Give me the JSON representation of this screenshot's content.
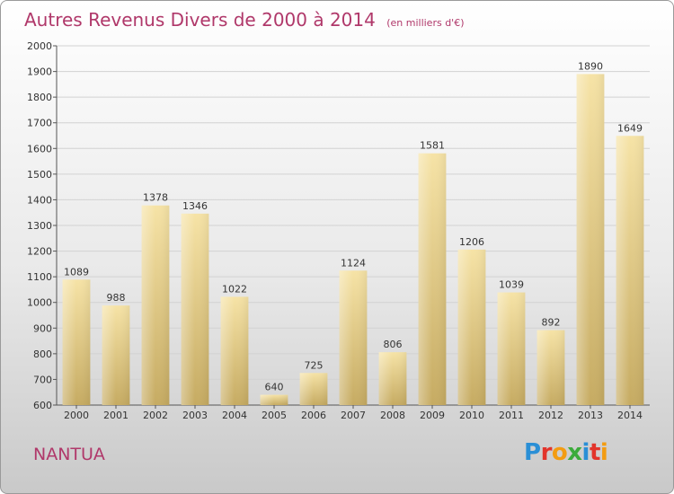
{
  "header": {
    "title": "Autres Revenus Divers de 2000 à 2014",
    "subtitle": "(en milliers d'€)"
  },
  "footer": {
    "city": "NANTUA",
    "logo_text": "Proxiti"
  },
  "colors": {
    "title": "#b0386a",
    "bar_light": "#f6e3a6",
    "bar_dark": "#c6ab62",
    "grid": "#d2d2d2",
    "axis": "#555555"
  },
  "chart_data": {
    "type": "bar",
    "title": "Autres Revenus Divers de 2000 à 2014",
    "subtitle": "(en milliers d'€)",
    "xlabel": "",
    "ylabel": "",
    "categories": [
      "2000",
      "2001",
      "2002",
      "2003",
      "2004",
      "2005",
      "2006",
      "2007",
      "2008",
      "2009",
      "2010",
      "2011",
      "2012",
      "2013",
      "2014"
    ],
    "values": [
      1089,
      988,
      1378,
      1346,
      1022,
      640,
      725,
      1124,
      806,
      1581,
      1206,
      1039,
      892,
      1890,
      1649
    ],
    "ylim": [
      600,
      2000
    ],
    "yticks": [
      600,
      700,
      800,
      900,
      1000,
      1100,
      1200,
      1300,
      1400,
      1500,
      1600,
      1700,
      1800,
      1900,
      2000
    ],
    "grid": true,
    "legend": "none"
  }
}
